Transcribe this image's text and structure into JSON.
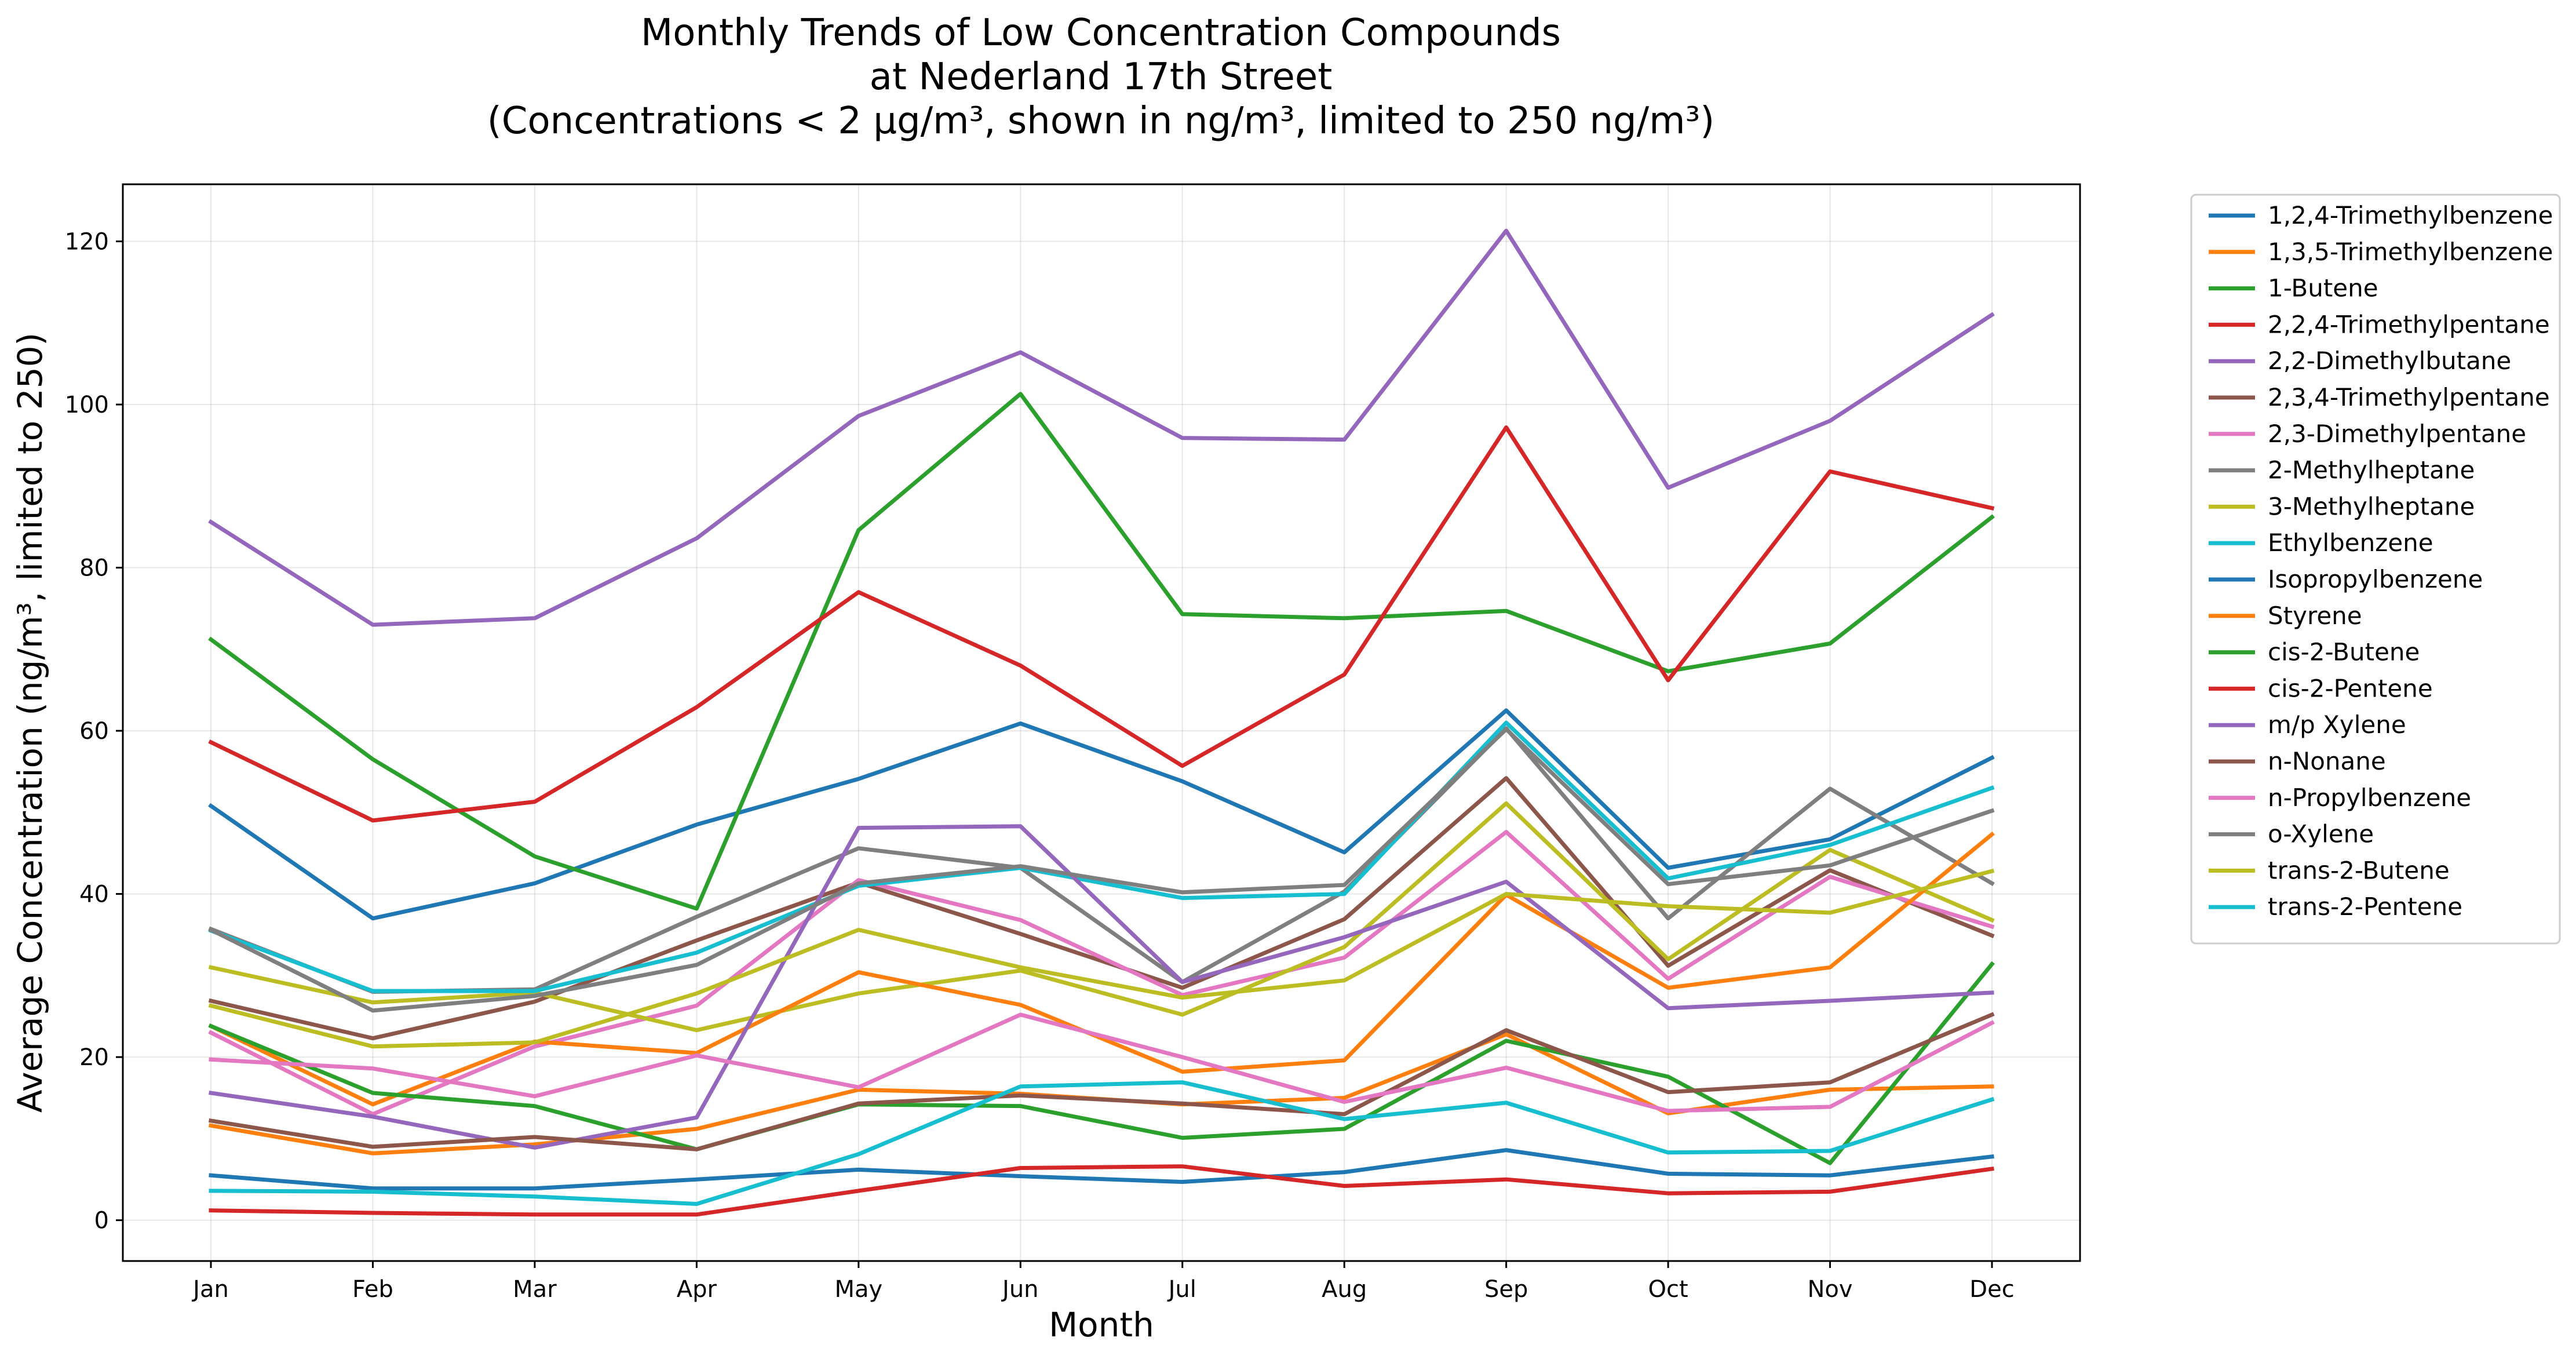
{
  "chart_data": {
    "type": "line",
    "title_lines": [
      "Monthly Trends of Low Concentration Compounds",
      "at Nederland 17th Street",
      "(Concentrations < 2 µg/m³, shown in ng/m³, limited to 250 ng/m³)"
    ],
    "xlabel": "Month",
    "ylabel": "Average Concentration (ng/m³, limited to 250)",
    "categories": [
      "Jan",
      "Feb",
      "Mar",
      "Apr",
      "May",
      "Jun",
      "Jul",
      "Aug",
      "Sep",
      "Oct",
      "Nov",
      "Dec"
    ],
    "ylim": [
      -5,
      127
    ],
    "yticks": [
      0,
      20,
      40,
      60,
      80,
      100,
      120
    ],
    "grid": true,
    "legend_position": "outside-right",
    "series": [
      {
        "name": "1,2,4-Trimethylbenzene",
        "color": "#1f77b4",
        "values": [
          50.8,
          37.0,
          41.3,
          48.5,
          54.1,
          60.9,
          53.8,
          45.1,
          62.5,
          43.2,
          46.7,
          56.7
        ]
      },
      {
        "name": "1,3,5-Trimethylbenzene",
        "color": "#ff7f0e",
        "values": [
          11.6,
          8.2,
          9.3,
          11.2,
          16.0,
          15.5,
          14.2,
          15.0,
          22.8,
          13.1,
          16.0,
          16.4
        ]
      },
      {
        "name": "1-Butene",
        "color": "#2ca02c",
        "values": [
          71.2,
          56.5,
          44.6,
          38.2,
          84.6,
          101.3,
          74.3,
          73.8,
          74.7,
          67.3,
          70.7,
          86.2
        ]
      },
      {
        "name": "2,2,4-Trimethylpentane",
        "color": "#d62728",
        "values": [
          58.6,
          49.0,
          51.3,
          62.9,
          77.0,
          68.0,
          55.7,
          66.9,
          97.2,
          66.2,
          91.8,
          87.3
        ]
      },
      {
        "name": "2,2-Dimethylbutane",
        "color": "#9467bd",
        "values": [
          85.6,
          73.0,
          73.8,
          83.6,
          98.6,
          106.4,
          95.9,
          95.7,
          121.3,
          89.8,
          98.0,
          111.0
        ]
      },
      {
        "name": "2,3,4-Trimethylpentane",
        "color": "#8c564b",
        "values": [
          26.9,
          22.3,
          26.8,
          34.3,
          41.4,
          35.1,
          28.5,
          36.9,
          54.2,
          31.2,
          42.9,
          34.9
        ]
      },
      {
        "name": "2,3-Dimethylpentane",
        "color": "#e377c2",
        "values": [
          23.0,
          13.0,
          21.3,
          26.3,
          41.7,
          36.8,
          27.6,
          32.2,
          47.6,
          29.6,
          42.1,
          36.0
        ]
      },
      {
        "name": "2-Methylheptane",
        "color": "#7f7f7f",
        "values": [
          35.7,
          28.0,
          28.3,
          37.2,
          45.6,
          43.2,
          29.2,
          40.3,
          60.3,
          37.0,
          52.9,
          41.3
        ]
      },
      {
        "name": "3-Methylheptane",
        "color": "#bcbd22",
        "values": [
          31.0,
          26.7,
          27.9,
          23.3,
          27.8,
          30.6,
          25.2,
          33.5,
          51.1,
          32.0,
          45.4,
          36.8
        ]
      },
      {
        "name": "Ethylbenzene",
        "color": "#17becf",
        "values": [
          35.5,
          28.1,
          28.1,
          32.8,
          41.0,
          43.2,
          39.5,
          40.0,
          61.0,
          41.9,
          46.0,
          53.0
        ]
      },
      {
        "name": "Isopropylbenzene",
        "color": "#1f77b4",
        "values": [
          5.5,
          3.9,
          3.9,
          5.0,
          6.2,
          5.4,
          4.7,
          5.9,
          8.6,
          5.7,
          5.5,
          7.8
        ]
      },
      {
        "name": "Styrene",
        "color": "#ff7f0e",
        "values": [
          23.8,
          14.2,
          21.9,
          20.5,
          30.4,
          26.4,
          18.2,
          19.6,
          39.9,
          28.5,
          31.0,
          47.3
        ]
      },
      {
        "name": "cis-2-Butene",
        "color": "#2ca02c",
        "values": [
          23.8,
          15.6,
          14.0,
          8.7,
          14.2,
          14.0,
          10.1,
          11.2,
          22.0,
          17.6,
          7.0,
          31.4
        ]
      },
      {
        "name": "cis-2-Pentene",
        "color": "#d62728",
        "values": [
          1.2,
          0.9,
          0.7,
          0.7,
          3.6,
          6.4,
          6.6,
          4.2,
          5.0,
          3.3,
          3.5,
          6.3
        ]
      },
      {
        "name": "m/p Xylene",
        "color": "#9467bd",
        "values": [
          15.6,
          12.7,
          8.9,
          12.6,
          48.1,
          48.3,
          29.2,
          34.7,
          41.5,
          26.0,
          26.9,
          27.9
        ]
      },
      {
        "name": "n-Nonane",
        "color": "#8c564b",
        "values": [
          12.2,
          9.0,
          10.2,
          8.7,
          14.3,
          15.3,
          14.3,
          13.0,
          23.3,
          15.7,
          16.9,
          25.2
        ]
      },
      {
        "name": "n-Propylbenzene",
        "color": "#e377c2",
        "values": [
          19.7,
          18.6,
          15.2,
          20.2,
          16.3,
          25.2,
          20.0,
          14.5,
          18.7,
          13.4,
          13.9,
          24.2
        ]
      },
      {
        "name": "o-Xylene",
        "color": "#7f7f7f",
        "values": [
          35.6,
          25.7,
          27.5,
          31.3,
          41.3,
          43.4,
          40.2,
          41.1,
          60.2,
          41.2,
          43.5,
          50.2
        ]
      },
      {
        "name": "trans-2-Butene",
        "color": "#bcbd22",
        "values": [
          26.3,
          21.3,
          21.8,
          27.8,
          35.6,
          31.0,
          27.3,
          29.4,
          40.0,
          38.5,
          37.7,
          42.8
        ]
      },
      {
        "name": "trans-2-Pentene",
        "color": "#17becf",
        "values": [
          3.6,
          3.5,
          2.9,
          2.0,
          8.1,
          16.4,
          16.9,
          12.4,
          14.4,
          8.3,
          8.5,
          14.8
        ]
      }
    ]
  }
}
